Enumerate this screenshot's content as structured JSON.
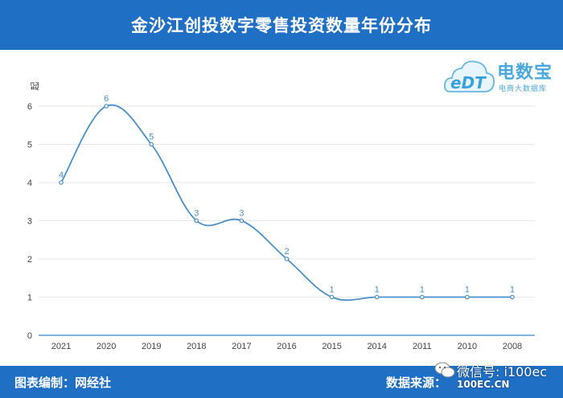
{
  "header": {
    "title": "金沙江创投数字零售投资数量年份分布"
  },
  "logo": {
    "brand": "电数宝",
    "letters": "eDT",
    "subtitle": "电商大数据库"
  },
  "footer": {
    "left_text": "图表编制：网经社",
    "right_text": "数据来源："
  },
  "watermark": {
    "wechat_id": "微信号: i100ec",
    "site": "100EC.CN"
  },
  "colors": {
    "header_bg": "#1f6fc5",
    "line": "#4a90c8",
    "label": "#4a90c8"
  },
  "chart_data": {
    "type": "line",
    "title": "金沙江创投数字零售投资数量年份分布",
    "xlabel": "",
    "ylabel": "起",
    "categories": [
      "2021",
      "2020",
      "2019",
      "2018",
      "2017",
      "2016",
      "2015",
      "2014",
      "2011",
      "2010",
      "2008"
    ],
    "series": [
      {
        "values": [
          4,
          6,
          5,
          3,
          3,
          2,
          1,
          1,
          1,
          1,
          1
        ]
      }
    ],
    "ylim": [
      0,
      6
    ],
    "yticks": [
      0,
      1,
      2,
      3,
      4,
      5,
      6
    ],
    "grid": true,
    "smooth": true,
    "data_labels": true
  }
}
